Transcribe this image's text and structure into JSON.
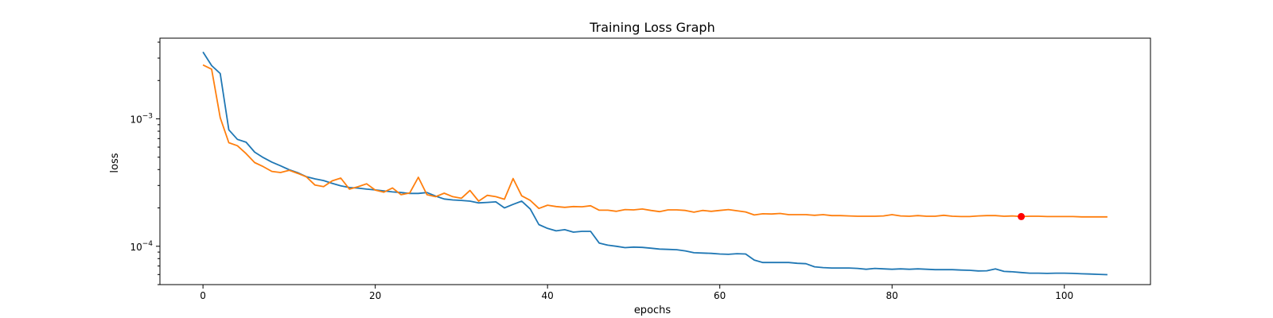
{
  "chart_data": {
    "type": "line",
    "title": "Training Loss Graph",
    "xlabel": "epochs",
    "ylabel": "loss",
    "xlim": [
      -5,
      110
    ],
    "ylim": [
      5e-05,
      0.0043
    ],
    "yscale": "log",
    "grid": false,
    "xticks": [
      0,
      20,
      40,
      60,
      80,
      100
    ],
    "xtick_labels": [
      "0",
      "20",
      "40",
      "60",
      "80",
      "100"
    ],
    "yticks": [
      0.001,
      0.0001
    ],
    "ytick_labels": [
      {
        "base": "10",
        "exp": "−3"
      },
      {
        "base": "10",
        "exp": "−4"
      }
    ],
    "series": [
      {
        "color": "#1f77b4",
        "x": [
          0,
          1,
          2,
          3,
          4,
          5,
          6,
          7,
          8,
          9,
          10,
          11,
          12,
          13,
          14,
          15,
          16,
          17,
          18,
          19,
          20,
          21,
          22,
          23,
          24,
          25,
          26,
          27,
          28,
          29,
          30,
          31,
          32,
          33,
          34,
          35,
          36,
          37,
          38,
          39,
          40,
          41,
          42,
          43,
          44,
          45,
          46,
          47,
          48,
          49,
          50,
          51,
          52,
          53,
          54,
          55,
          56,
          57,
          58,
          59,
          60,
          61,
          62,
          63,
          64,
          65,
          66,
          67,
          68,
          69,
          70,
          71,
          72,
          73,
          74,
          75,
          76,
          77,
          78,
          79,
          80,
          81,
          82,
          83,
          84,
          85,
          86,
          87,
          88,
          89,
          90,
          91,
          92,
          93,
          94,
          95,
          96,
          97,
          98,
          99,
          100,
          101,
          102,
          103,
          104,
          105
        ],
        "y": [
          0.00335,
          0.00262,
          0.00227,
          0.00082,
          0.00069,
          0.000656,
          0.000548,
          0.000497,
          0.000458,
          0.000428,
          0.000399,
          0.000378,
          0.000352,
          0.000338,
          0.000328,
          0.000312,
          0.000298,
          0.000289,
          0.000286,
          0.000281,
          0.000277,
          0.000272,
          0.000267,
          0.000264,
          0.00026,
          0.00026,
          0.000264,
          0.000248,
          0.000235,
          0.000231,
          0.000229,
          0.000226,
          0.000219,
          0.000221,
          0.000223,
          0.0002,
          0.000213,
          0.000226,
          0.000196,
          0.000148,
          0.000138,
          0.000132,
          0.000135,
          0.000129,
          0.000131,
          0.000131,
          0.000106,
          0.000102,
          0.0001,
          9.75e-05,
          9.85e-05,
          9.8e-05,
          9.65e-05,
          9.5e-05,
          9.45e-05,
          9.4e-05,
          9.2e-05,
          8.9e-05,
          8.85e-05,
          8.8e-05,
          8.7e-05,
          8.65e-05,
          8.75e-05,
          8.7e-05,
          7.8e-05,
          7.45e-05,
          7.45e-05,
          7.45e-05,
          7.45e-05,
          7.35e-05,
          7.3e-05,
          6.9e-05,
          6.8e-05,
          6.75e-05,
          6.75e-05,
          6.75e-05,
          6.7e-05,
          6.6e-05,
          6.7e-05,
          6.65e-05,
          6.6e-05,
          6.65e-05,
          6.6e-05,
          6.65e-05,
          6.6e-05,
          6.55e-05,
          6.55e-05,
          6.55e-05,
          6.5e-05,
          6.48e-05,
          6.4e-05,
          6.42e-05,
          6.65e-05,
          6.35e-05,
          6.3e-05,
          6.22e-05,
          6.15e-05,
          6.15e-05,
          6.12e-05,
          6.15e-05,
          6.15e-05,
          6.12e-05,
          6.08e-05,
          6.05e-05,
          6.02e-05,
          5.98e-05
        ]
      },
      {
        "color": "#ff7f0e",
        "x": [
          0,
          1,
          2,
          3,
          4,
          5,
          6,
          7,
          8,
          9,
          10,
          11,
          12,
          13,
          14,
          15,
          16,
          17,
          18,
          19,
          20,
          21,
          22,
          23,
          24,
          25,
          26,
          27,
          28,
          29,
          30,
          31,
          32,
          33,
          34,
          35,
          36,
          37,
          38,
          39,
          40,
          41,
          42,
          43,
          44,
          45,
          46,
          47,
          48,
          49,
          50,
          51,
          52,
          53,
          54,
          55,
          56,
          57,
          58,
          59,
          60,
          61,
          62,
          63,
          64,
          65,
          66,
          67,
          68,
          69,
          70,
          71,
          72,
          73,
          74,
          75,
          76,
          77,
          78,
          79,
          80,
          81,
          82,
          83,
          84,
          85,
          86,
          87,
          88,
          89,
          90,
          91,
          92,
          93,
          94,
          95,
          96,
          97,
          98,
          99,
          100,
          101,
          102,
          103,
          104,
          105
        ],
        "y": [
          0.00265,
          0.00245,
          0.00102,
          0.00065,
          0.000615,
          0.000534,
          0.000454,
          0.000422,
          0.000387,
          0.000379,
          0.000395,
          0.000373,
          0.000351,
          0.000302,
          0.000294,
          0.000326,
          0.000343,
          0.000281,
          0.000293,
          0.000309,
          0.000276,
          0.000266,
          0.000287,
          0.000254,
          0.000262,
          0.000348,
          0.000254,
          0.000245,
          0.000261,
          0.000245,
          0.000238,
          0.000274,
          0.000226,
          0.000251,
          0.000245,
          0.000234,
          0.00034,
          0.000249,
          0.000229,
          0.000198,
          0.00021,
          0.000205,
          0.000202,
          0.000205,
          0.000204,
          0.000208,
          0.000192,
          0.000192,
          0.000188,
          0.000194,
          0.000193,
          0.000196,
          0.000191,
          0.000187,
          0.000193,
          0.000193,
          0.000191,
          0.000185,
          0.000191,
          0.000188,
          0.000191,
          0.000194,
          0.00019,
          0.000186,
          0.000176,
          0.00018,
          0.000179,
          0.000181,
          0.000177,
          0.000177,
          0.000177,
          0.000175,
          0.000177,
          0.000174,
          0.000174,
          0.000173,
          0.000172,
          0.000172,
          0.000172,
          0.000173,
          0.000177,
          0.000173,
          0.000172,
          0.000174,
          0.000172,
          0.000172,
          0.000175,
          0.000172,
          0.000171,
          0.000171,
          0.000173,
          0.000174,
          0.000174,
          0.000172,
          0.000173,
          0.000171,
          0.000172,
          0.000172,
          0.000171,
          0.000171,
          0.000171,
          0.000171,
          0.00017,
          0.00017,
          0.00017,
          0.00017
        ]
      }
    ],
    "marker": {
      "x": 95,
      "y": 0.000171,
      "color": "#ff0000"
    }
  }
}
